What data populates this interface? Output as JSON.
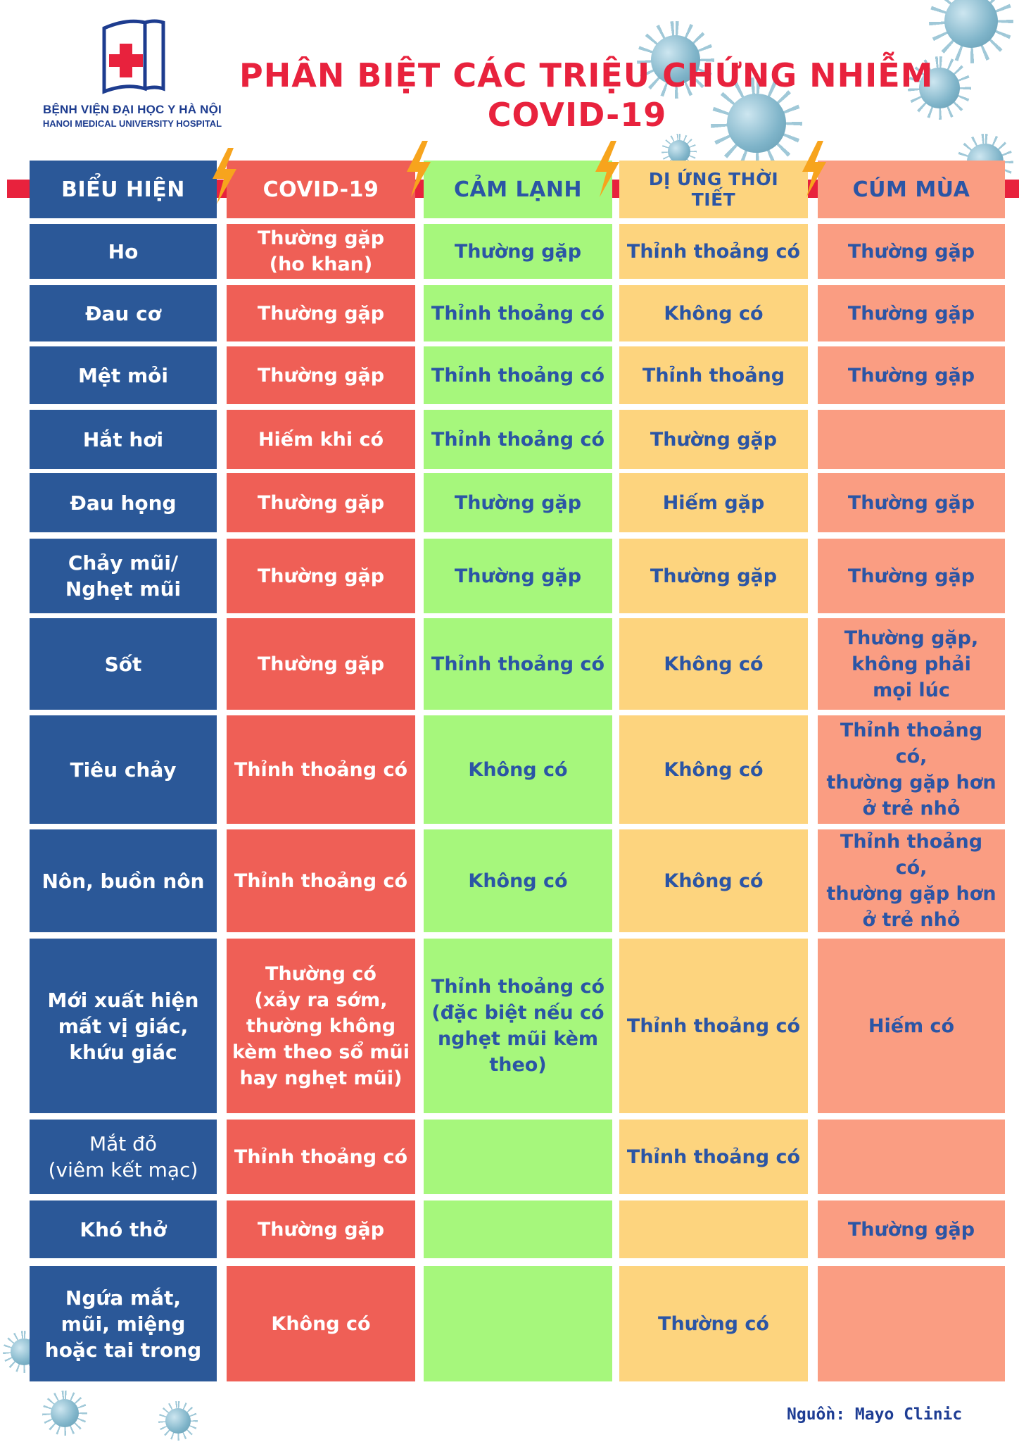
{
  "logo": {
    "line1": "BỆNH VIỆN ĐẠI HỌC Y HÀ NỘI",
    "line2": "HANOI MEDICAL UNIVERSITY HOSPITAL"
  },
  "title": {
    "line1": "PHÂN BIỆT CÁC TRIỆU CHỨNG NHIỄM",
    "line2": "COVID-19"
  },
  "table": {
    "headers": [
      "BIỂU HIỆN",
      "COVID-19",
      "CẢM LẠNH",
      "DỊ ỨNG THỜI TIẾT",
      "CÚM MÙA"
    ],
    "rows": [
      {
        "symptom": "Ho",
        "covid": "Thường gặp\n(ho khan)",
        "cold": "Thường gặp",
        "allergy": "Thỉnh thoảng có",
        "flu": "Thường gặp"
      },
      {
        "symptom": "Đau cơ",
        "covid": "Thường gặp",
        "cold": "Thỉnh thoảng có",
        "allergy": "Không có",
        "flu": "Thường gặp"
      },
      {
        "symptom": "Mệt mỏi",
        "covid": "Thường gặp",
        "cold": "Thỉnh thoảng có",
        "allergy": "Thỉnh thoảng",
        "flu": "Thường gặp"
      },
      {
        "symptom": "Hắt hơi",
        "covid": "Hiếm khi có",
        "cold": "Thỉnh thoảng có",
        "allergy": "Thường gặp",
        "flu": ""
      },
      {
        "symptom": "Đau họng",
        "covid": "Thường gặp",
        "cold": "Thường gặp",
        "allergy": "Hiếm gặp",
        "flu": "Thường gặp"
      },
      {
        "symptom": "Chảy mũi/\nNghẹt mũi",
        "covid": "Thường gặp",
        "cold": "Thường gặp",
        "allergy": "Thường gặp",
        "flu": "Thường gặp"
      },
      {
        "symptom": "Sốt",
        "covid": "Thường gặp",
        "cold": "Thỉnh thoảng có",
        "allergy": "Không có",
        "flu": "Thường gặp,\nkhông phải\nmọi lúc"
      },
      {
        "symptom": "Tiêu chảy",
        "covid": "Thỉnh thoảng có",
        "cold": "Không có",
        "allergy": "Không có",
        "flu": "Thỉnh thoảng có,\nthường gặp hơn\nở trẻ nhỏ"
      },
      {
        "symptom": "Nôn, buồn nôn",
        "covid": "Thỉnh thoảng có",
        "cold": "Không có",
        "allergy": "Không có",
        "flu": "Thỉnh thoảng có,\nthường gặp hơn\nở trẻ nhỏ"
      },
      {
        "symptom": "Mới xuất hiện\nmất vị giác,\nkhứu giác",
        "covid": "Thường có\n(xảy ra sớm,\nthường không\nkèm theo sổ mũi\nhay  nghẹt mũi)",
        "cold": "Thỉnh thoảng có\n(đặc biệt nếu có\nnghẹt mũi kèm\ntheo)",
        "allergy": "Thỉnh thoảng có",
        "flu": "Hiếm có"
      },
      {
        "symptom": "Mắt đỏ\n(viêm kết mạc)",
        "covid": "Thỉnh thoảng có",
        "cold": "",
        "allergy": "Thỉnh thoảng có",
        "flu": ""
      },
      {
        "symptom": "Khó thở",
        "covid": "Thường gặp",
        "cold": "",
        "allergy": "",
        "flu": "Thường gặp"
      },
      {
        "symptom": "Ngứa mắt,\nmũi, miệng\nhoặc tai trong",
        "covid": "Không có",
        "cold": "",
        "allergy": "Thường có",
        "flu": ""
      }
    ]
  },
  "source": "Nguồn: Mayo Clinic",
  "colors": {
    "title_red": "#e8223d",
    "symptom_blue": "#2b5898",
    "covid_red": "#ef5f56",
    "cold_green": "#a6f77c",
    "allergy_yellow": "#fdd47e",
    "flu_salmon": "#fa9d82",
    "text_blue": "#2b55a5"
  }
}
